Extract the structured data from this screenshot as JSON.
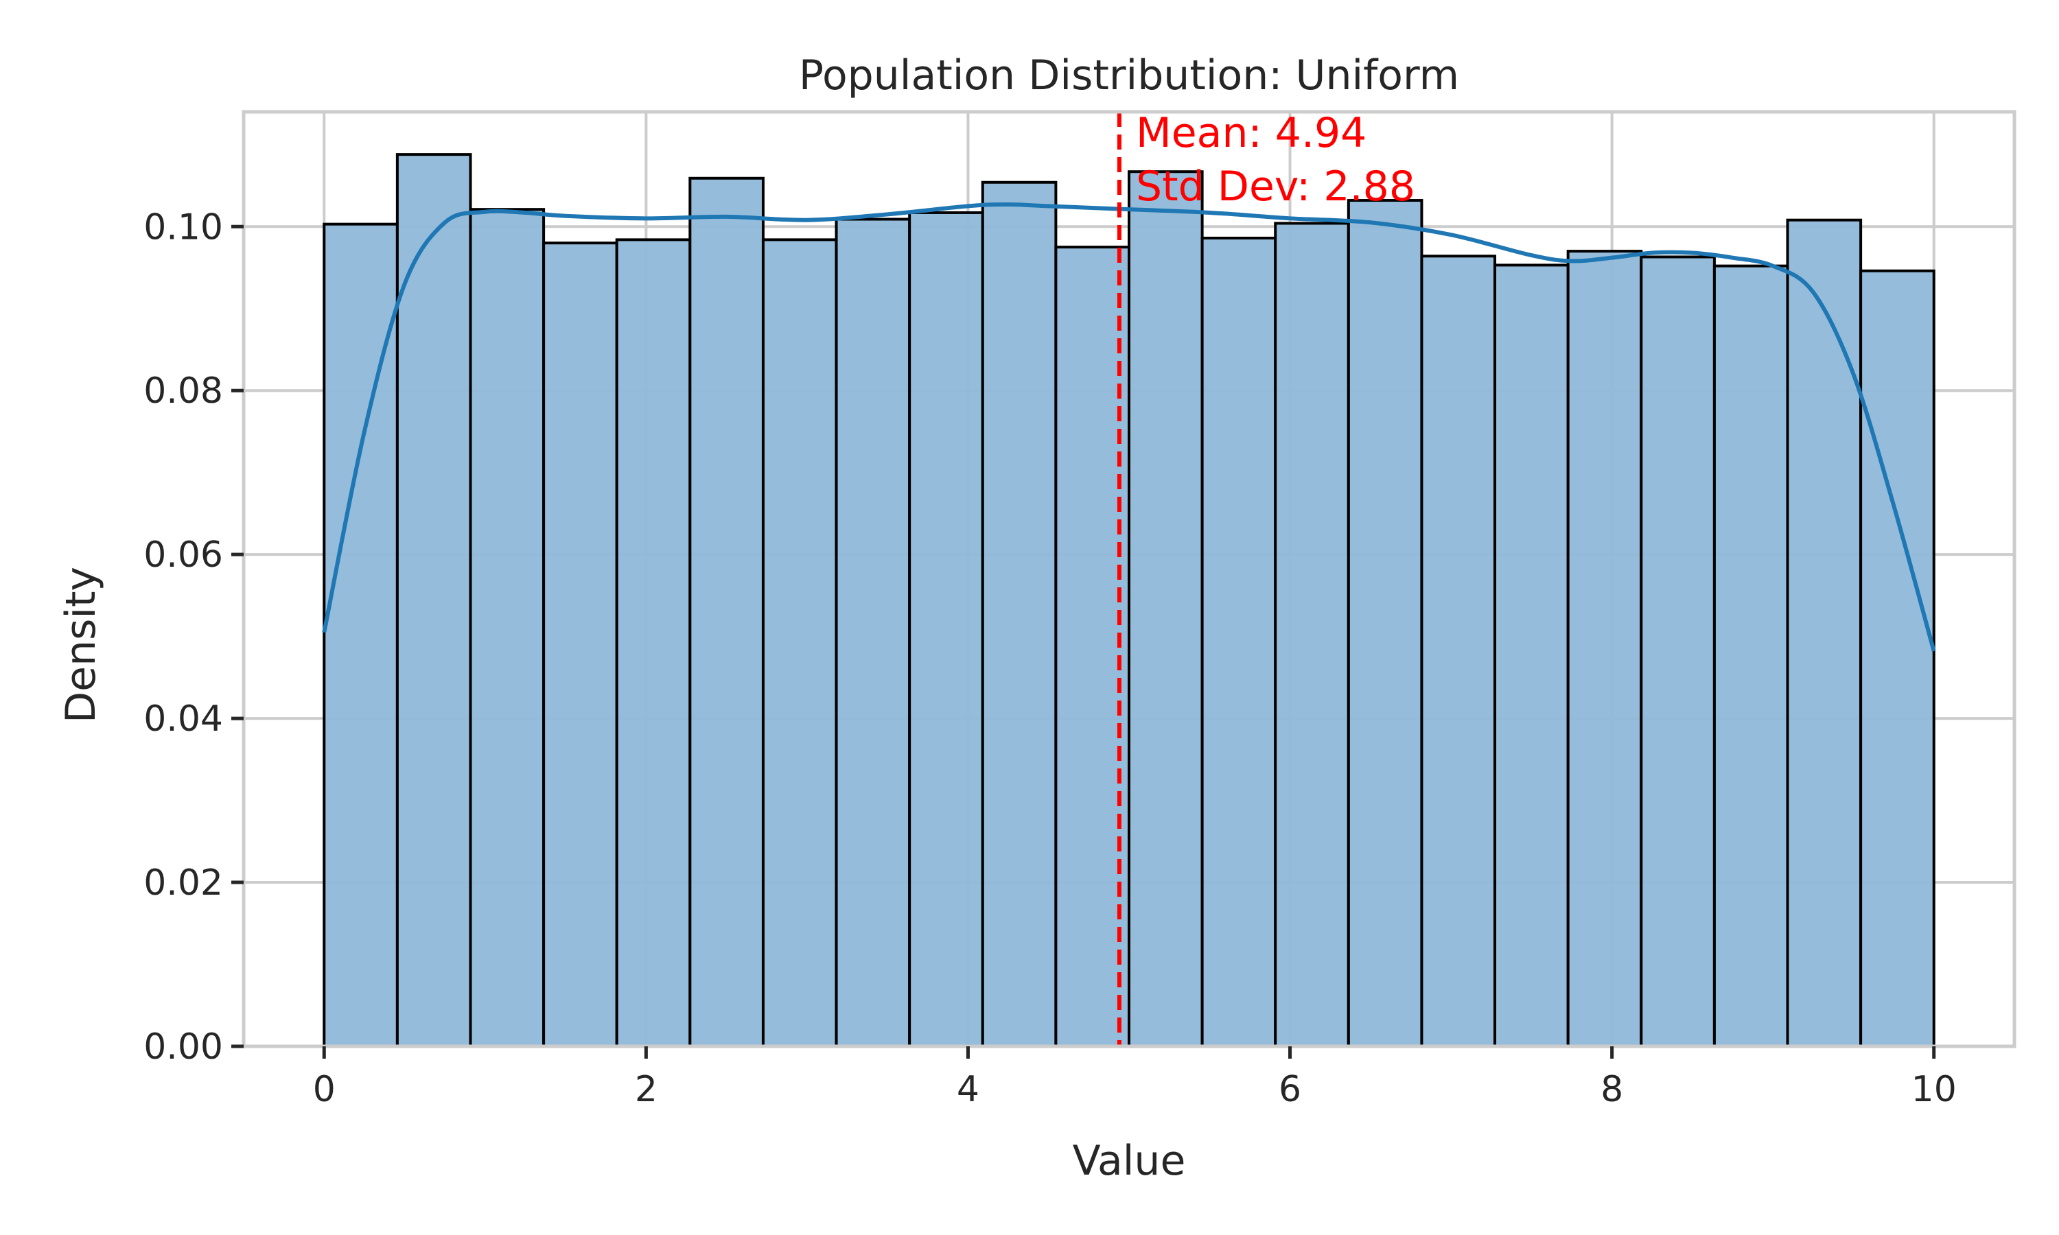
{
  "chart_data": {
    "type": "bar",
    "title": "Population Distribution: Uniform",
    "xlabel": "Value",
    "ylabel": "Density",
    "xlim": [
      -0.5,
      10.5
    ],
    "ylim": [
      0,
      0.114
    ],
    "xticks": [
      0,
      2,
      4,
      6,
      8,
      10
    ],
    "xtick_labels": [
      "0",
      "2",
      "4",
      "6",
      "8",
      "10"
    ],
    "yticks": [
      0,
      0.02,
      0.04,
      0.06,
      0.08,
      0.1
    ],
    "ytick_labels": [
      "0.00",
      "0.02",
      "0.04",
      "0.06",
      "0.08",
      "0.10"
    ],
    "grid": true,
    "bins": {
      "start": 0,
      "end": 10,
      "values": [
        0.1003,
        0.1088,
        0.1021,
        0.098,
        0.0984,
        0.1059,
        0.0984,
        0.1009,
        0.1017,
        0.1054,
        0.0975,
        0.1067,
        0.0986,
        0.1004,
        0.1032,
        0.0964,
        0.0953,
        0.097,
        0.0963,
        0.0952,
        0.1008,
        0.0946
      ]
    },
    "kde": {
      "x": [
        0,
        0.25,
        0.5,
        0.75,
        1.0,
        1.25,
        1.5,
        2.0,
        2.5,
        3.0,
        3.5,
        4.0,
        4.25,
        4.5,
        5.0,
        5.5,
        6.0,
        6.5,
        7.0,
        7.5,
        7.75,
        8.0,
        8.25,
        8.5,
        8.75,
        9.0,
        9.25,
        9.5,
        9.75,
        10.0
      ],
      "y": [
        0.0505,
        0.075,
        0.093,
        0.1005,
        0.1018,
        0.1017,
        0.1013,
        0.101,
        0.1012,
        0.1008,
        0.1015,
        0.1025,
        0.1027,
        0.1025,
        0.1021,
        0.1017,
        0.101,
        0.1005,
        0.099,
        0.0965,
        0.0958,
        0.0962,
        0.0968,
        0.0968,
        0.0962,
        0.0952,
        0.092,
        0.082,
        0.066,
        0.0482
      ]
    },
    "mean_line": {
      "x": 4.94
    },
    "annotations": [
      "Mean: 4.94",
      "Std Dev: 2.88"
    ],
    "colors": {
      "bar_fill": "#8fb9d9",
      "bar_edge": "#000000",
      "kde_line": "#1f77b4",
      "mean_line": "#ff0000",
      "grid": "#cccccc",
      "spine": "#cccccc"
    }
  }
}
